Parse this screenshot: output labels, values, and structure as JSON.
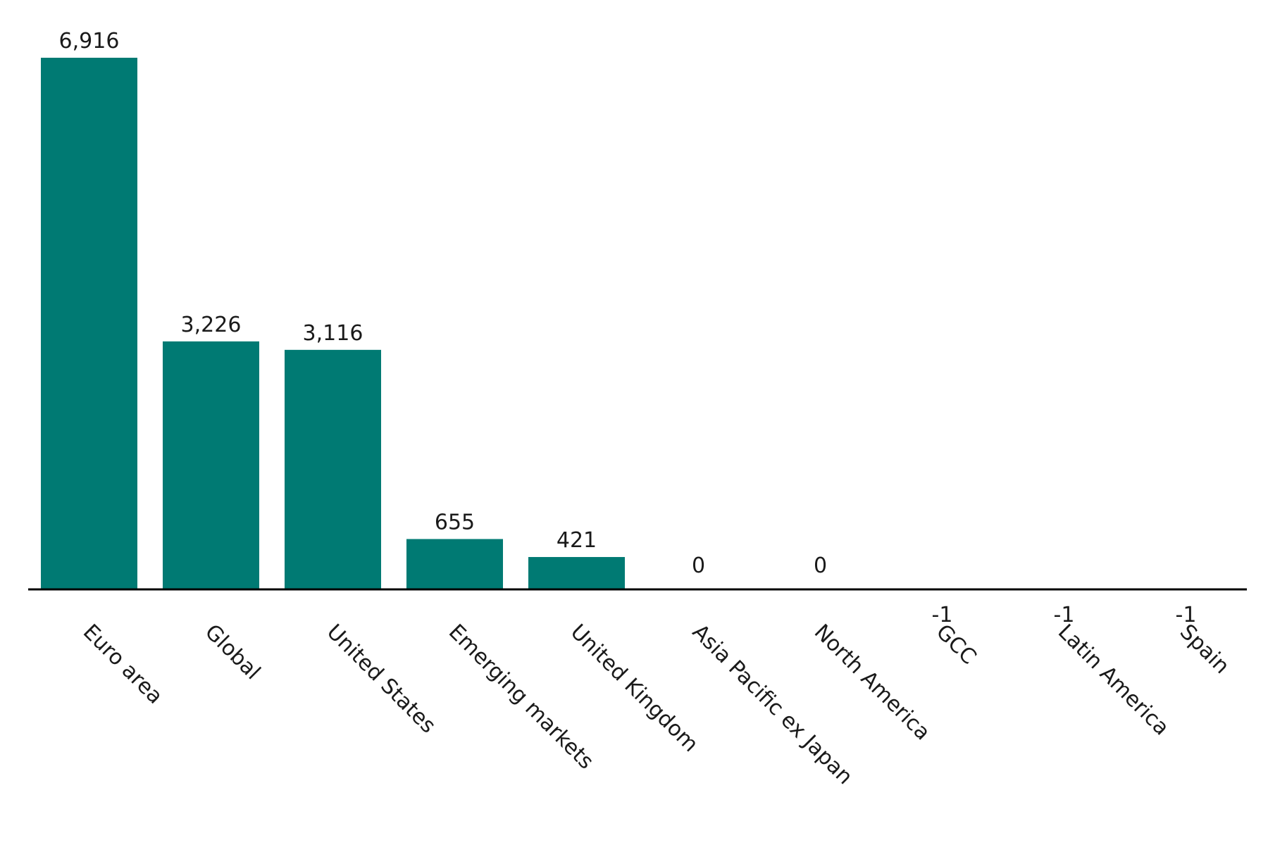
{
  "chart_data": {
    "type": "bar",
    "categories": [
      "Euro area",
      "Global",
      "United States",
      "Emerging markets",
      "United Kingdom",
      "Asia Pacific ex Japan",
      "North America",
      "GCC",
      "Latin America",
      "Spain"
    ],
    "values": [
      6916,
      3226,
      3116,
      655,
      421,
      0,
      0,
      -1,
      -1,
      -1
    ],
    "value_labels": [
      "6,916",
      "3,226",
      "3,116",
      "655",
      "421",
      "0",
      "0",
      "-1",
      "-1",
      "-1"
    ],
    "title": "",
    "xlabel": "",
    "ylabel": "",
    "ylim": [
      -1,
      7000
    ],
    "grid": false,
    "legend": "none",
    "colors": {
      "bar": "#007a73",
      "axis": "#000000",
      "text": "#1a1a1a"
    }
  }
}
